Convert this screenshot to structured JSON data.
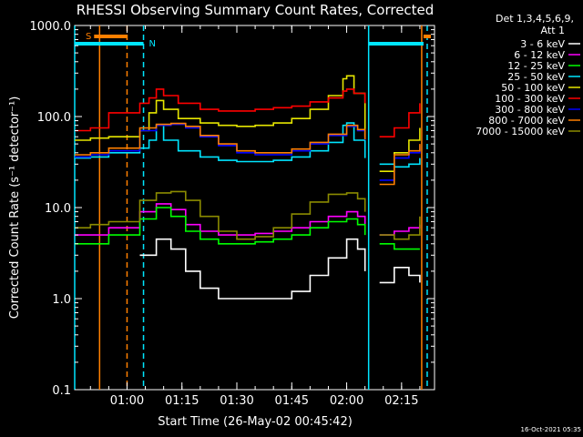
{
  "chart_data": {
    "type": "line",
    "title": "RHESSI Observing Summary Count Rates, Corrected",
    "xlabel": "Start Time (26-May-02 00:45:42)",
    "ylabel": "Corrected Count Rate (s⁻¹ detector⁻¹)",
    "y_scale": "log",
    "ylim": [
      0.1,
      1000.0
    ],
    "y_ticks": [
      "0.1",
      "1.0",
      "10.0",
      "100.0",
      "1000.0"
    ],
    "x_range": [
      "00:45:42",
      "02:24:00"
    ],
    "x_ticks": [
      "01:00",
      "01:15",
      "01:30",
      "01:45",
      "02:00",
      "02:15"
    ],
    "legend_header": [
      "Det 1,3,4,5,6,9,",
      "Att 1"
    ],
    "legend_position": "right",
    "timestamp": "16-Oct-2021 05:35",
    "flags": [
      {
        "label": "S",
        "color": "#ff7f00",
        "start": "00:51:00",
        "end": "01:00:00"
      },
      {
        "label": "N",
        "color": "#00e5ff",
        "start": "00:45:42",
        "end": "01:04:30"
      },
      {
        "label": "",
        "color": "#00e5ff",
        "start": "02:06:00",
        "end": "02:21:00"
      },
      {
        "label": "",
        "color": "#ff7f00",
        "start": "02:21:00",
        "end": "02:23:00"
      }
    ],
    "vertical_markers": [
      {
        "time": "00:45:42",
        "color": "#00e5ff",
        "style": "solid"
      },
      {
        "time": "00:52:30",
        "color": "#ff7f00",
        "style": "solid"
      },
      {
        "time": "01:00:00",
        "color": "#ff7f00",
        "style": "dashed"
      },
      {
        "time": "01:04:30",
        "color": "#00e5ff",
        "style": "dashed"
      },
      {
        "time": "02:06:00",
        "color": "#00e5ff",
        "style": "solid"
      },
      {
        "time": "02:20:30",
        "color": "#ff7f00",
        "style": "solid"
      },
      {
        "time": "02:22:00",
        "color": "#00e5ff",
        "style": "dashed"
      }
    ],
    "series": [
      {
        "name": "3 - 6 keV",
        "color": "#ffffff",
        "x": [
          "00:45:42",
          "00:50:00",
          "00:55:00",
          "01:03:30",
          "01:08:00",
          "01:12:00",
          "01:16:00",
          "01:20:00",
          "01:25:00",
          "01:30:00",
          "01:35:00",
          "01:40:00",
          "01:45:00",
          "01:50:00",
          "01:55:00",
          "02:00:00",
          "02:03:00",
          "02:05:00",
          "02:06:00",
          "02:09:00",
          "02:13:00",
          "02:17:00",
          "02:20:00"
        ],
        "y": [
          null,
          null,
          null,
          3.0,
          4.5,
          3.5,
          2.0,
          1.3,
          1.0,
          1.0,
          1.0,
          1.0,
          1.2,
          1.8,
          2.8,
          4.5,
          3.5,
          2.0,
          null,
          1.5,
          2.2,
          1.8,
          1.5
        ]
      },
      {
        "name": "6 - 12 keV",
        "color": "#ff00ff",
        "x": [
          "00:45:42",
          "00:50:00",
          "00:55:00",
          "01:03:30",
          "01:08:00",
          "01:12:00",
          "01:16:00",
          "01:20:00",
          "01:25:00",
          "01:30:00",
          "01:35:00",
          "01:40:00",
          "01:45:00",
          "01:50:00",
          "01:55:00",
          "02:00:00",
          "02:03:00",
          "02:05:00",
          "02:06:00",
          "02:09:00",
          "02:13:00",
          "02:17:00",
          "02:20:00"
        ],
        "y": [
          5.0,
          5.0,
          6.0,
          9.0,
          11.0,
          9.5,
          6.5,
          5.5,
          5.0,
          5.0,
          5.2,
          5.5,
          6.0,
          7.0,
          8.0,
          9.0,
          8.0,
          6.5,
          null,
          5.0,
          5.5,
          6.0,
          6.5
        ]
      },
      {
        "name": "12 - 25 keV",
        "color": "#00ff00",
        "x": [
          "00:45:42",
          "00:50:00",
          "00:55:00",
          "01:03:30",
          "01:08:00",
          "01:12:00",
          "01:16:00",
          "01:20:00",
          "01:25:00",
          "01:30:00",
          "01:35:00",
          "01:40:00",
          "01:45:00",
          "01:50:00",
          "01:55:00",
          "02:00:00",
          "02:03:00",
          "02:05:00",
          "02:06:00",
          "02:09:00",
          "02:13:00",
          "02:17:00",
          "02:20:00"
        ],
        "y": [
          4.0,
          4.0,
          5.0,
          7.5,
          10.0,
          8.0,
          5.5,
          4.5,
          4.0,
          4.0,
          4.2,
          4.5,
          5.0,
          6.0,
          7.0,
          7.5,
          6.5,
          5.0,
          null,
          4.0,
          3.5,
          3.5,
          3.5
        ]
      },
      {
        "name": "25 - 50 keV",
        "color": "#00e5ff",
        "x": [
          "00:45:42",
          "00:50:00",
          "00:55:00",
          "01:03:30",
          "01:06:00",
          "01:08:00",
          "01:10:00",
          "01:14:00",
          "01:20:00",
          "01:25:00",
          "01:30:00",
          "01:35:00",
          "01:40:00",
          "01:45:00",
          "01:50:00",
          "01:55:00",
          "01:59:00",
          "02:00:00",
          "02:02:00",
          "02:05:00",
          "02:06:00",
          "02:09:00",
          "02:13:00",
          "02:17:00",
          "02:20:00"
        ],
        "y": [
          35,
          36,
          40,
          45,
          55,
          80,
          55,
          42,
          36,
          33,
          32,
          32,
          33,
          36,
          42,
          52,
          80,
          85,
          55,
          35,
          null,
          30,
          28,
          30,
          35
        ]
      },
      {
        "name": "50 - 100 keV",
        "color": "#e6e600",
        "x": [
          "00:45:42",
          "00:50:00",
          "00:55:00",
          "01:03:30",
          "01:06:00",
          "01:08:00",
          "01:10:00",
          "01:14:00",
          "01:20:00",
          "01:25:00",
          "01:30:00",
          "01:35:00",
          "01:40:00",
          "01:45:00",
          "01:50:00",
          "01:55:00",
          "01:59:00",
          "02:00:00",
          "02:02:00",
          "02:05:00",
          "02:06:00",
          "02:09:00",
          "02:13:00",
          "02:17:00",
          "02:20:00"
        ],
        "y": [
          55,
          58,
          60,
          70,
          110,
          150,
          120,
          95,
          85,
          80,
          78,
          80,
          85,
          95,
          120,
          170,
          260,
          280,
          180,
          60,
          null,
          25,
          40,
          55,
          75
        ]
      },
      {
        "name": "100 - 300 keV",
        "color": "#ff0000",
        "x": [
          "00:45:42",
          "00:50:00",
          "00:55:00",
          "01:03:30",
          "01:06:00",
          "01:08:00",
          "01:10:00",
          "01:14:00",
          "01:20:00",
          "01:25:00",
          "01:30:00",
          "01:35:00",
          "01:40:00",
          "01:45:00",
          "01:50:00",
          "01:55:00",
          "01:59:00",
          "02:00:00",
          "02:02:00",
          "02:05:00",
          "02:06:00",
          "02:09:00",
          "02:13:00",
          "02:17:00",
          "02:20:00"
        ],
        "y": [
          70,
          75,
          110,
          140,
          160,
          200,
          170,
          140,
          120,
          115,
          115,
          120,
          125,
          130,
          145,
          160,
          190,
          200,
          180,
          140,
          null,
          60,
          75,
          110,
          140
        ]
      },
      {
        "name": "300 - 800 keV",
        "color": "#0000ff",
        "x": [
          "00:45:42",
          "00:50:00",
          "00:55:00",
          "01:03:30",
          "01:08:00",
          "01:12:00",
          "01:16:00",
          "01:20:00",
          "01:25:00",
          "01:30:00",
          "01:35:00",
          "01:40:00",
          "01:45:00",
          "01:50:00",
          "01:55:00",
          "02:00:00",
          "02:03:00",
          "02:05:00",
          "02:06:00",
          "02:09:00",
          "02:13:00",
          "02:17:00",
          "02:20:00"
        ],
        "y": [
          36,
          38,
          42,
          70,
          80,
          82,
          75,
          60,
          48,
          40,
          38,
          38,
          42,
          50,
          62,
          78,
          70,
          55,
          null,
          20,
          35,
          40,
          48
        ]
      },
      {
        "name": "800 - 7000 keV",
        "color": "#ff7f00",
        "x": [
          "00:45:42",
          "00:50:00",
          "00:55:00",
          "01:03:30",
          "01:08:00",
          "01:12:00",
          "01:16:00",
          "01:20:00",
          "01:25:00",
          "01:30:00",
          "01:35:00",
          "01:40:00",
          "01:45:00",
          "01:50:00",
          "01:55:00",
          "02:00:00",
          "02:03:00",
          "02:05:00",
          "02:06:00",
          "02:09:00",
          "02:13:00",
          "02:17:00",
          "02:20:00"
        ],
        "y": [
          38,
          40,
          45,
          75,
          82,
          84,
          78,
          62,
          50,
          42,
          40,
          40,
          44,
          52,
          64,
          80,
          72,
          56,
          null,
          18,
          38,
          42,
          50
        ]
      },
      {
        "name": "7000 - 15000 keV",
        "color": "#8b8b00",
        "x": [
          "00:45:42",
          "00:50:00",
          "00:55:00",
          "01:03:30",
          "01:08:00",
          "01:12:00",
          "01:16:00",
          "01:20:00",
          "01:25:00",
          "01:30:00",
          "01:35:00",
          "01:40:00",
          "01:45:00",
          "01:50:00",
          "01:55:00",
          "02:00:00",
          "02:03:00",
          "02:05:00",
          "02:06:00",
          "02:09:00",
          "02:13:00",
          "02:17:00",
          "02:20:00"
        ],
        "y": [
          6.0,
          6.5,
          7.0,
          12.0,
          14.5,
          15.0,
          12.0,
          8.0,
          5.5,
          4.5,
          4.8,
          6.0,
          8.5,
          11.5,
          14.0,
          14.5,
          12.5,
          9.0,
          null,
          5.0,
          4.5,
          5.0,
          8.0
        ]
      }
    ]
  }
}
